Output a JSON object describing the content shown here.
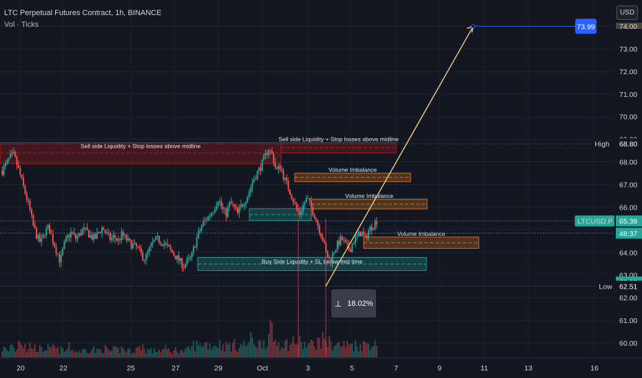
{
  "header": {
    "title": "LTC Perpetual Futures Contract, 1h, BINANCE",
    "indicator": "Vol · Ticks"
  },
  "currency_button": "USD",
  "measure": {
    "icon": "measure-range-icon",
    "label": "18.02%"
  },
  "colors": {
    "background": "#131722",
    "bull": "#26a69a",
    "bear": "#ef5350",
    "target_tag": "#2962ff",
    "projection_arrow": "#f5d08a",
    "sell_zone": "#b71c1c",
    "green_zone": "#26a69a",
    "orange_zone": "#e67e22"
  },
  "price_axis": {
    "ticks": [
      "60.00",
      "61.00",
      "62.00",
      "63.00",
      "64.00",
      "65.00",
      "66.00",
      "67.00",
      "68.00",
      "69.00",
      "70.00",
      "71.00",
      "72.00",
      "73.00",
      "74.00"
    ],
    "tags": [
      {
        "label": "",
        "value": "73.99",
        "price": 73.99,
        "color": "#2962ff"
      },
      {
        "label": "High",
        "value": "68.80",
        "price": 68.8,
        "color": "#131722"
      },
      {
        "label": "LTCUSD.P",
        "value": "65.39",
        "price": 65.39,
        "color": "#26a69a"
      },
      {
        "label": "",
        "value": "48:37",
        "price": 64.85,
        "color": "#26a69a"
      },
      {
        "label": "",
        "value": "62.69",
        "price": 62.69,
        "color": "#26a69a"
      },
      {
        "label": "Low",
        "value": "62.51",
        "price": 62.51,
        "color": "#131722"
      }
    ]
  },
  "time_axis": {
    "ticks": [
      "20",
      "22",
      "25",
      "27",
      "29",
      "Oct",
      "3",
      "5",
      "7",
      "9",
      "11",
      "13",
      "16"
    ]
  },
  "zones": [
    {
      "label": "Sell side Liquidity + Stop losses above midline",
      "type": "sell",
      "top": 68.85,
      "bottom": 67.92,
      "x_start": 0,
      "x_end": 408
    },
    {
      "label": "Sell side Liquidity + Stop losses above midline",
      "type": "sell",
      "top": 68.85,
      "bottom": 68.4,
      "x_start": 408,
      "x_end": 575
    },
    {
      "label": "Volume Imbalance",
      "type": "orange",
      "top": 67.5,
      "bottom": 67.13,
      "x_start": 428,
      "x_end": 596
    },
    {
      "label": "Volume Imbalance",
      "type": "orange",
      "top": 66.35,
      "bottom": 65.92,
      "x_start": 452,
      "x_end": 620
    },
    {
      "label": "",
      "type": "green",
      "top": 65.93,
      "bottom": 65.41,
      "x_start": 362,
      "x_end": 452
    },
    {
      "label": "Volume Imbalance",
      "type": "orange",
      "top": 64.68,
      "bottom": 64.18,
      "x_start": 528,
      "x_end": 695
    },
    {
      "label": "Buy Side Liquidity + SL below mid time",
      "type": "green",
      "top": 63.78,
      "bottom": 63.2,
      "x_start": 287,
      "x_end": 619
    }
  ],
  "projection": {
    "from_price": 62.51,
    "to_price": 73.99
  },
  "chart_data": {
    "type": "candlestick",
    "title": "LTC Perpetual Futures Contract, 1h, BINANCE",
    "y_range": [
      59.6,
      74.5
    ],
    "x_ticks": [
      "20",
      "22",
      "25",
      "27",
      "29",
      "Oct",
      "3",
      "5",
      "7",
      "9",
      "11",
      "13",
      "16"
    ],
    "current_price": 65.39,
    "high": 68.8,
    "low": 62.51,
    "target": 73.99,
    "measure_percent": "18.02%",
    "close_path": [
      67.6,
      67.9,
      68.2,
      68.3,
      67.8,
      67.2,
      66.6,
      66.0,
      65.2,
      64.7,
      64.4,
      64.9,
      65.1,
      64.6,
      64.1,
      63.6,
      64.3,
      64.7,
      64.9,
      64.6,
      64.8,
      65.0,
      64.9,
      64.7,
      64.6,
      64.9,
      65.1,
      64.8,
      64.6,
      64.7,
      64.5,
      64.8,
      64.6,
      64.4,
      64.3,
      64.2,
      63.9,
      63.7,
      64.1,
      64.4,
      64.6,
      64.5,
      64.4,
      64.2,
      64.0,
      63.8,
      63.6,
      63.4,
      63.6,
      63.8,
      64.4,
      64.9,
      65.3,
      65.5,
      65.7,
      66.0,
      66.4,
      65.9,
      65.7,
      66.2,
      66.0,
      65.7,
      66.1,
      66.3,
      66.7,
      67.2,
      67.5,
      67.8,
      68.2,
      68.6,
      68.3,
      67.6,
      67.8,
      67.3,
      66.9,
      66.5,
      66.0,
      65.7,
      66.1,
      66.4,
      66.0,
      65.6,
      65.1,
      64.6,
      63.9,
      63.6,
      64.1,
      64.4,
      64.6,
      64.3,
      64.1,
      64.5,
      64.7,
      64.9,
      64.6,
      65.0,
      65.2,
      65.4
    ],
    "volume_profile": [
      0.35,
      0.25,
      0.5,
      0.3,
      0.9,
      0.6,
      0.3,
      0.5,
      0.4,
      0.35,
      0.3,
      0.4,
      0.3,
      0.45,
      0.3,
      0.3,
      0.25,
      0.4,
      0.3,
      0.25,
      0.25,
      0.3,
      0.3,
      0.35,
      0.25,
      0.3,
      0.35,
      0.3,
      0.25,
      0.3,
      0.3,
      0.35,
      0.3,
      0.25,
      0.3,
      0.35,
      0.5,
      0.3,
      0.3,
      0.25,
      0.3,
      0.3,
      0.35,
      0.3,
      0.25,
      0.3,
      0.3,
      0.25,
      0.3,
      0.4,
      0.5,
      0.45,
      0.6,
      0.55,
      0.5,
      0.5,
      0.55,
      0.5,
      0.45,
      0.5,
      0.5,
      0.45,
      0.5,
      0.5,
      0.6,
      0.7,
      0.6,
      0.55,
      0.7,
      0.8,
      1.0,
      0.7,
      0.6,
      0.6,
      0.55,
      0.5,
      0.7,
      0.6,
      0.5,
      0.5,
      0.5,
      0.55,
      0.6,
      0.7,
      0.85,
      0.6,
      0.55,
      0.5,
      0.5,
      0.5,
      0.5,
      0.55,
      0.5,
      0.5,
      0.5,
      0.55,
      0.6,
      0.5
    ]
  }
}
